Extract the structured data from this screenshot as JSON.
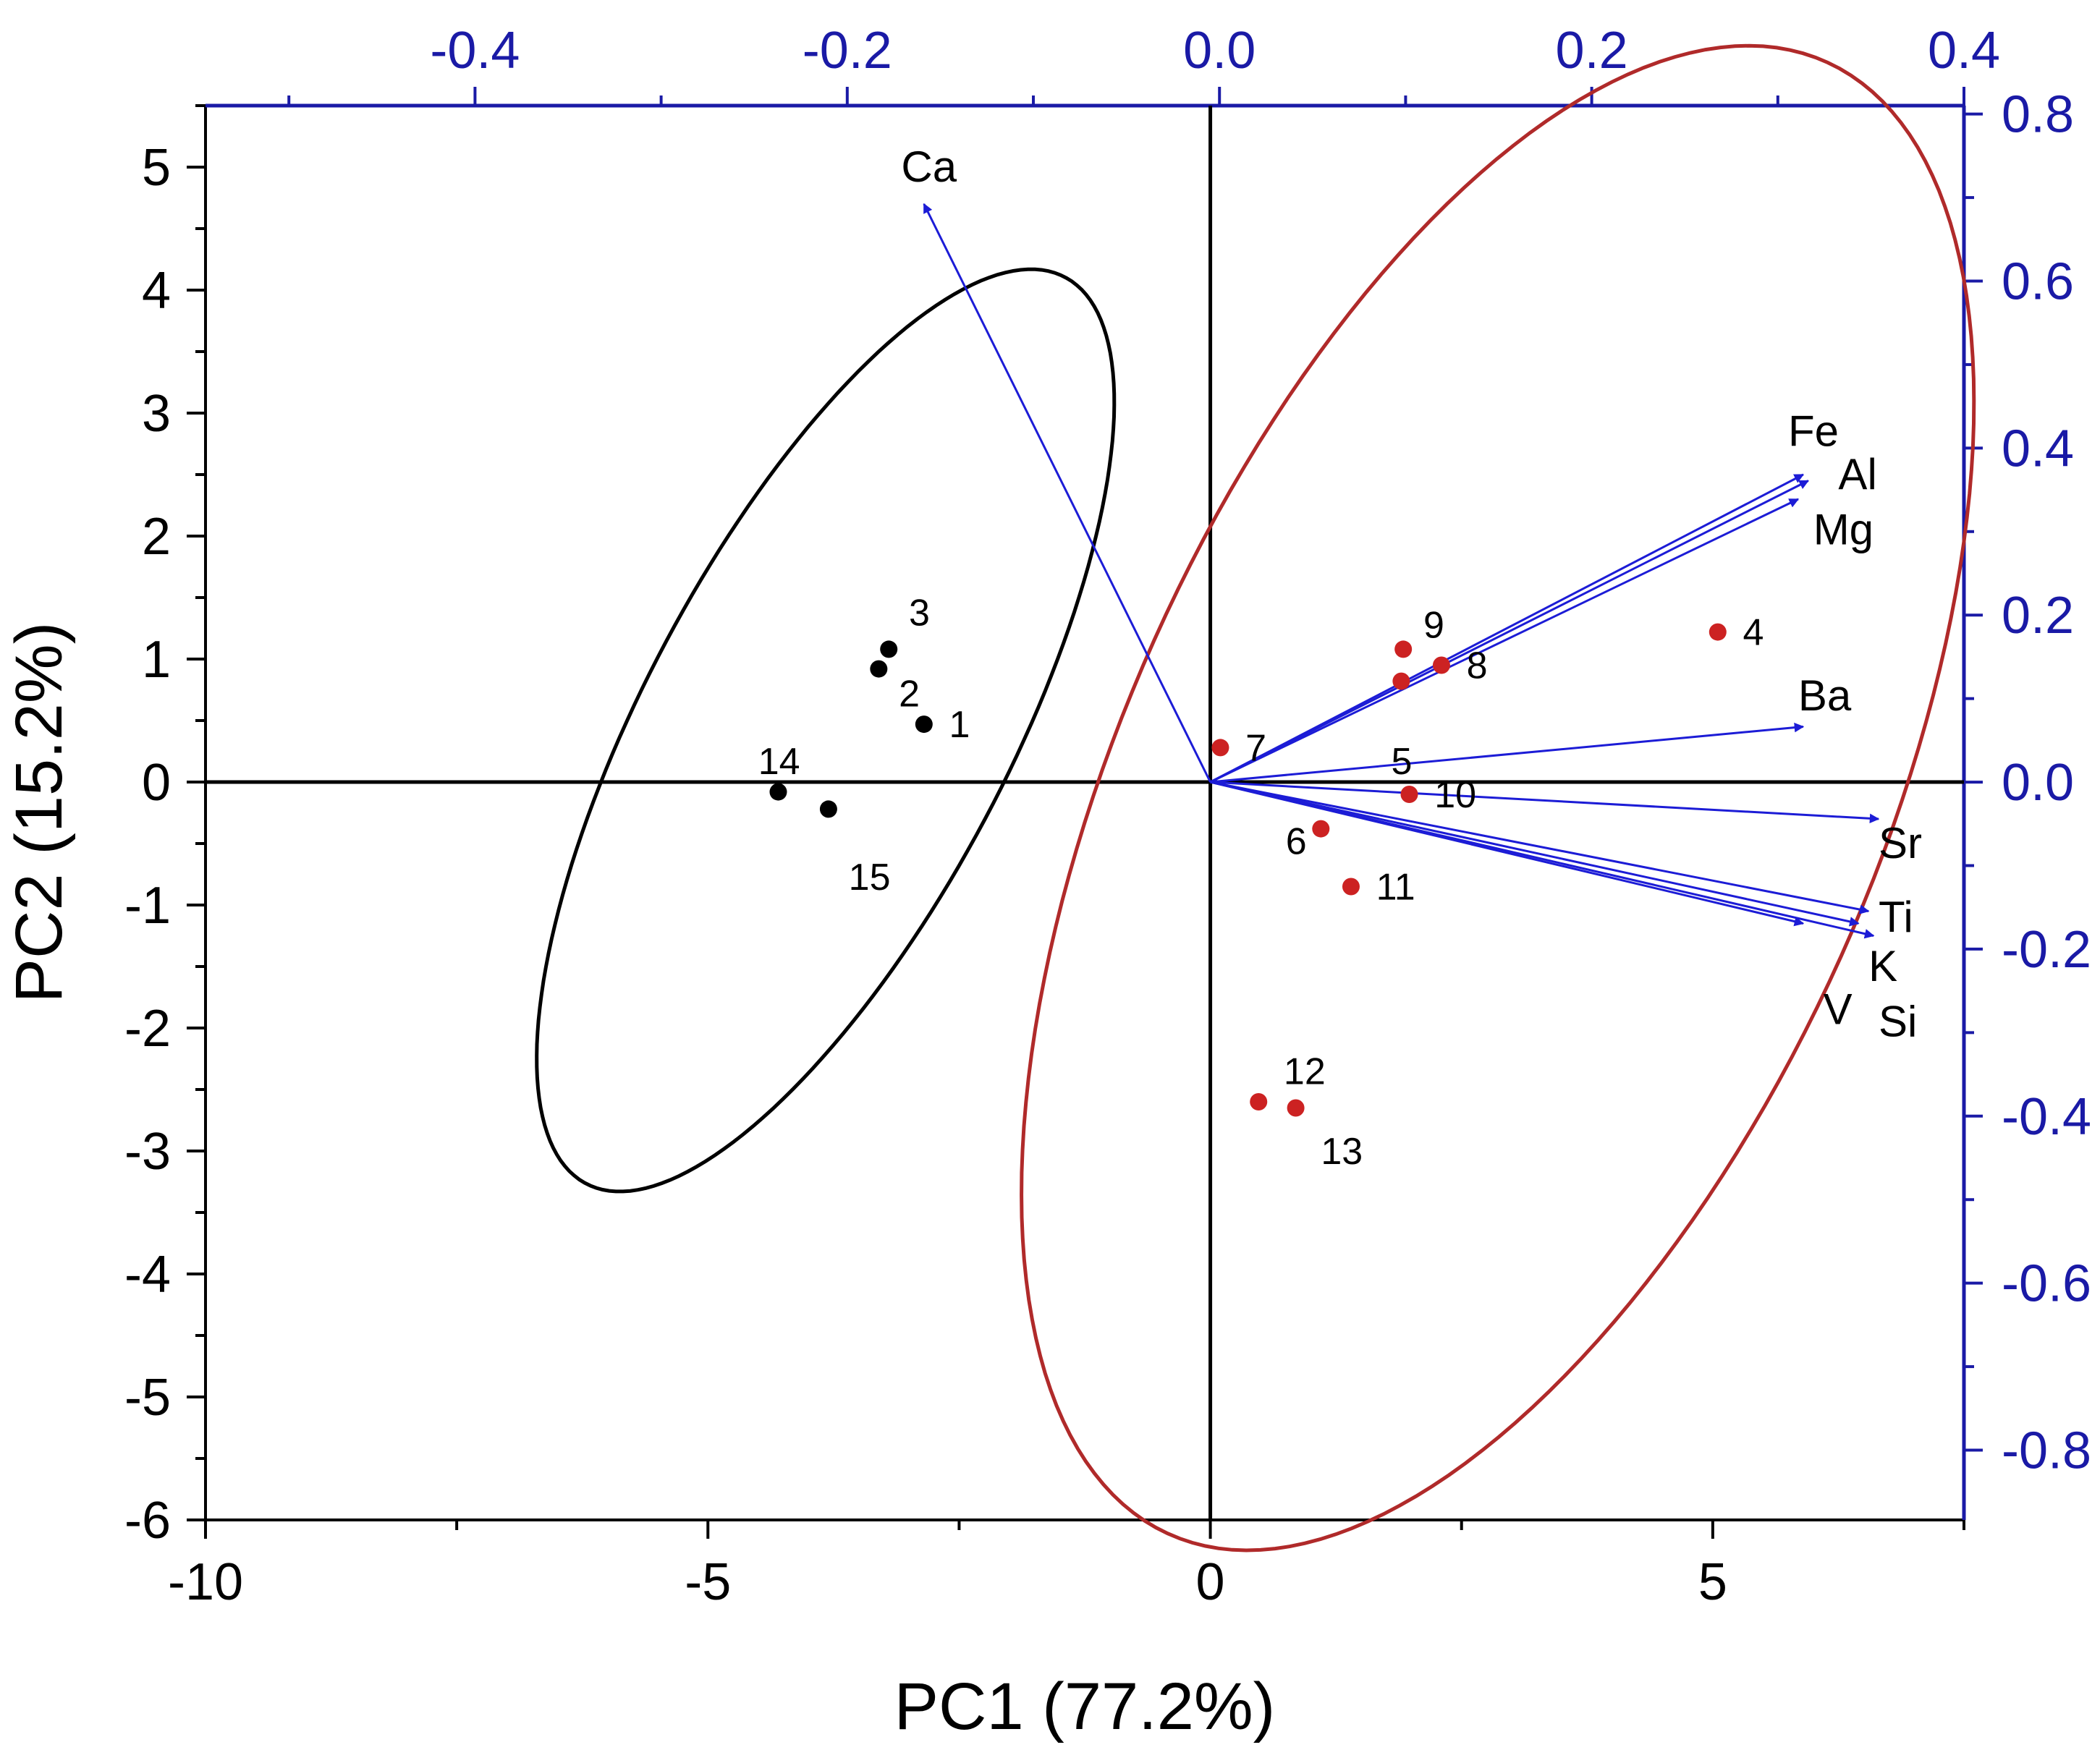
{
  "chart_data": {
    "type": "biplot",
    "colors": {
      "frame": "#000000",
      "secondary_axis": "#1a1aa6",
      "loadings": "#1c1cd6",
      "group_black": "#000000",
      "group_red": "#cc2222",
      "ellipse_red": "#b02a2a"
    },
    "xlabel": "PC1 (77.2%)",
    "ylabel": "PC2 (15.2%)",
    "xlim": [
      -10,
      7.5
    ],
    "ylim": [
      -6,
      5.5
    ],
    "x_ticks": [
      {
        "value": -10,
        "label": "-10"
      },
      {
        "value": -5,
        "label": "-5"
      },
      {
        "value": 0,
        "label": "0"
      },
      {
        "value": 5,
        "label": "5"
      }
    ],
    "y_ticks": [
      {
        "value": 5,
        "label": "5"
      },
      {
        "value": 4,
        "label": "4"
      },
      {
        "value": 3,
        "label": "3"
      },
      {
        "value": 2,
        "label": "2"
      },
      {
        "value": 1,
        "label": "1"
      },
      {
        "value": 0,
        "label": "0"
      },
      {
        "value": -1,
        "label": "-1"
      },
      {
        "value": -2,
        "label": "-2"
      },
      {
        "value": -3,
        "label": "-3"
      },
      {
        "value": -4,
        "label": "-4"
      },
      {
        "value": -5,
        "label": "-5"
      },
      {
        "value": -6,
        "label": "-6"
      }
    ],
    "top_axis": {
      "lim": [
        -0.5448,
        0.4
      ],
      "ticks": [
        {
          "value": -0.4,
          "label": "-0.4"
        },
        {
          "value": -0.2,
          "label": "-0.2"
        },
        {
          "value": 0.0,
          "label": "0.0"
        },
        {
          "value": 0.2,
          "label": "0.2"
        },
        {
          "value": 0.4,
          "label": "0.4"
        }
      ]
    },
    "right_axis": {
      "lim": [
        -0.8836,
        0.8101
      ],
      "ticks": [
        {
          "value": 0.8,
          "label": "0.8"
        },
        {
          "value": 0.6,
          "label": "0.6"
        },
        {
          "value": 0.4,
          "label": "0.4"
        },
        {
          "value": 0.2,
          "label": "0.2"
        },
        {
          "value": 0.0,
          "label": "0.0"
        },
        {
          "value": -0.2,
          "label": "-0.2"
        },
        {
          "value": -0.4,
          "label": "-0.4"
        },
        {
          "value": -0.6,
          "label": "-0.6"
        },
        {
          "value": -0.8,
          "label": "-0.8"
        }
      ]
    },
    "scores": [
      {
        "label": "1",
        "pc1": -2.85,
        "pc2": 0.47,
        "group": "black",
        "lx": 0.25,
        "ly": 0.0
      },
      {
        "label": "2",
        "pc1": -3.3,
        "pc2": 0.92,
        "group": "black",
        "lx": 0.2,
        "ly": -0.2
      },
      {
        "label": "3",
        "pc1": -3.2,
        "pc2": 1.08,
        "group": "black",
        "lx": 0.2,
        "ly": 0.3
      },
      {
        "label": "14",
        "pc1": -4.3,
        "pc2": -0.08,
        "group": "black",
        "lx": -0.2,
        "ly": 0.25
      },
      {
        "label": "15",
        "pc1": -3.8,
        "pc2": -0.22,
        "group": "black",
        "lx": 0.2,
        "ly": -0.55
      },
      {
        "label": "4",
        "pc1": 5.05,
        "pc2": 1.22,
        "group": "red",
        "lx": 0.25,
        "ly": 0.0
      },
      {
        "label": "5",
        "pc1": 1.9,
        "pc2": 0.82,
        "group": "red",
        "lx": -0.1,
        "ly": -0.65
      },
      {
        "label": "6",
        "pc1": 1.1,
        "pc2": -0.38,
        "group": "red",
        "lx": -0.35,
        "ly": -0.1
      },
      {
        "label": "7",
        "pc1": 0.1,
        "pc2": 0.28,
        "group": "red",
        "lx": 0.25,
        "ly": 0.0
      },
      {
        "label": "8",
        "pc1": 2.3,
        "pc2": 0.95,
        "group": "red",
        "lx": 0.25,
        "ly": 0.0
      },
      {
        "label": "9",
        "pc1": 1.92,
        "pc2": 1.08,
        "group": "red",
        "lx": 0.2,
        "ly": 0.2
      },
      {
        "label": "10",
        "pc1": 1.98,
        "pc2": -0.1,
        "group": "red",
        "lx": 0.25,
        "ly": 0.0
      },
      {
        "label": "11",
        "pc1": 1.4,
        "pc2": -0.85,
        "group": "red",
        "lx": 0.25,
        "ly": 0.0
      },
      {
        "label": "12",
        "pc1": 0.48,
        "pc2": -2.6,
        "group": "red",
        "lx": 0.25,
        "ly": 0.25
      },
      {
        "label": "13",
        "pc1": 0.85,
        "pc2": -2.65,
        "group": "red",
        "lx": 0.25,
        "ly": -0.35
      }
    ],
    "loadings": [
      {
        "var": "Ca",
        "pc1": -2.85,
        "pc2": 4.7,
        "lx": -2.8,
        "ly": 5.0,
        "anchor": "middle"
      },
      {
        "var": "Fe",
        "pc1": 5.9,
        "pc2": 2.5,
        "lx": 5.75,
        "ly": 2.85,
        "anchor": "start"
      },
      {
        "var": "Al",
        "pc1": 5.95,
        "pc2": 2.45,
        "lx": 6.25,
        "ly": 2.5,
        "anchor": "start"
      },
      {
        "var": "Mg",
        "pc1": 5.85,
        "pc2": 2.3,
        "lx": 6.0,
        "ly": 2.05,
        "anchor": "start"
      },
      {
        "var": "Ba",
        "pc1": 5.9,
        "pc2": 0.45,
        "lx": 5.85,
        "ly": 0.7,
        "anchor": "start"
      },
      {
        "var": "Sr",
        "pc1": 6.65,
        "pc2": -0.3,
        "lx": 6.65,
        "ly": -0.5,
        "anchor": "start"
      },
      {
        "var": "Ti",
        "pc1": 6.55,
        "pc2": -1.05,
        "lx": 6.65,
        "ly": -1.1,
        "anchor": "start"
      },
      {
        "var": "K",
        "pc1": 6.45,
        "pc2": -1.15,
        "lx": 6.55,
        "ly": -1.5,
        "anchor": "start"
      },
      {
        "var": "V",
        "pc1": 5.9,
        "pc2": -1.15,
        "lx": 6.1,
        "ly": -1.85,
        "anchor": "start"
      },
      {
        "var": "Si",
        "pc1": 6.6,
        "pc2": -1.25,
        "lx": 6.65,
        "ly": -1.95,
        "anchor": "start"
      }
    ],
    "ellipses": [
      {
        "name": "black-group",
        "cx": -3.83,
        "cy": 0.42,
        "rx": 4.4,
        "ry": 1.72,
        "angle_deg": 55.35
      },
      {
        "name": "red-group",
        "cx": 2.86,
        "cy": -0.13,
        "rx": 6.85,
        "ry": 3.6,
        "angle_deg": 58.06
      }
    ]
  }
}
